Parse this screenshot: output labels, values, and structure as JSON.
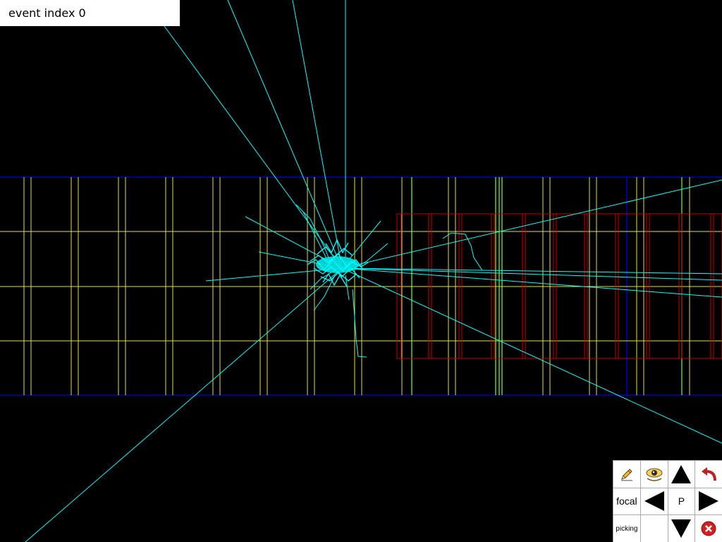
{
  "overlay": {
    "event_label": "event index 0"
  },
  "colors": {
    "background": "#000000",
    "tracks": "#00ffff",
    "detector_envelope": "#0000cc",
    "detector_layers": "#e0e040",
    "detector_layers_alt": "#80ff20",
    "calorimeter_modules": "#cc0000"
  },
  "toolbar": {
    "items": [
      {
        "name": "edit-pencil",
        "icon": "pencil-icon"
      },
      {
        "name": "viewpoint-eye",
        "icon": "eye-icon"
      },
      {
        "name": "move-up",
        "icon": "arrow-up-icon"
      },
      {
        "name": "undo",
        "icon": "undo-icon"
      },
      {
        "name": "focal",
        "label": "focal"
      },
      {
        "name": "move-left",
        "icon": "arrow-left-icon"
      },
      {
        "name": "projection",
        "label": "P"
      },
      {
        "name": "move-right",
        "icon": "arrow-right-icon"
      },
      {
        "name": "picking",
        "label": "picking"
      },
      {
        "name": "empty",
        "label": ""
      },
      {
        "name": "move-down",
        "icon": "arrow-down-icon"
      },
      {
        "name": "close",
        "icon": "close-icon"
      }
    ]
  }
}
